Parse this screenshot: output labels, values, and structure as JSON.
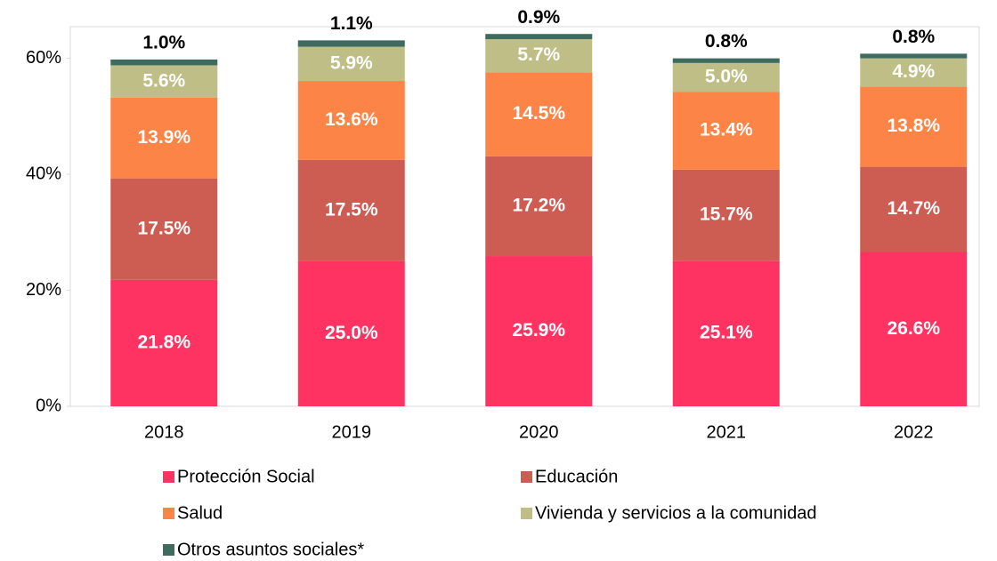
{
  "chart_data": {
    "type": "stacked_bar",
    "categories": [
      "2018",
      "2019",
      "2020",
      "2021",
      "2022"
    ],
    "series": [
      {
        "name": "Protección Social",
        "color": "#ff3361",
        "values": [
          21.8,
          25.0,
          25.9,
          25.1,
          26.6
        ],
        "value_labels": [
          "21.8%",
          "25.0%",
          "25.9%",
          "25.1%",
          "26.6%"
        ]
      },
      {
        "name": "Educación",
        "color": "#cd5c52",
        "values": [
          17.5,
          17.5,
          17.2,
          15.7,
          14.7
        ],
        "value_labels": [
          "17.5%",
          "17.5%",
          "17.2%",
          "15.7%",
          "14.7%"
        ]
      },
      {
        "name": "Salud",
        "color": "#fd8447",
        "values": [
          13.9,
          13.6,
          14.5,
          13.4,
          13.8
        ],
        "value_labels": [
          "13.9%",
          "13.6%",
          "14.5%",
          "13.4%",
          "13.8%"
        ]
      },
      {
        "name": "Vivienda y servicios a la comunidad",
        "color": "#bfbe87",
        "values": [
          5.6,
          5.9,
          5.7,
          5.0,
          4.9
        ],
        "value_labels": [
          "5.6%",
          "5.9%",
          "5.7%",
          "5.0%",
          "4.9%"
        ]
      },
      {
        "name": "Otros asuntos sociales*",
        "color": "#3e6b5e",
        "values": [
          1.0,
          1.1,
          0.9,
          0.8,
          0.8
        ],
        "value_labels": [
          "1.0%",
          "1.1%",
          "0.9%",
          "0.8%",
          "0.8%"
        ]
      }
    ],
    "ylim": [
      0,
      65
    ],
    "yticks": [
      {
        "value": 0,
        "label": "0%"
      },
      {
        "value": 20,
        "label": "20%"
      },
      {
        "value": 40,
        "label": "40%"
      },
      {
        "value": 60,
        "label": "60%"
      }
    ]
  }
}
